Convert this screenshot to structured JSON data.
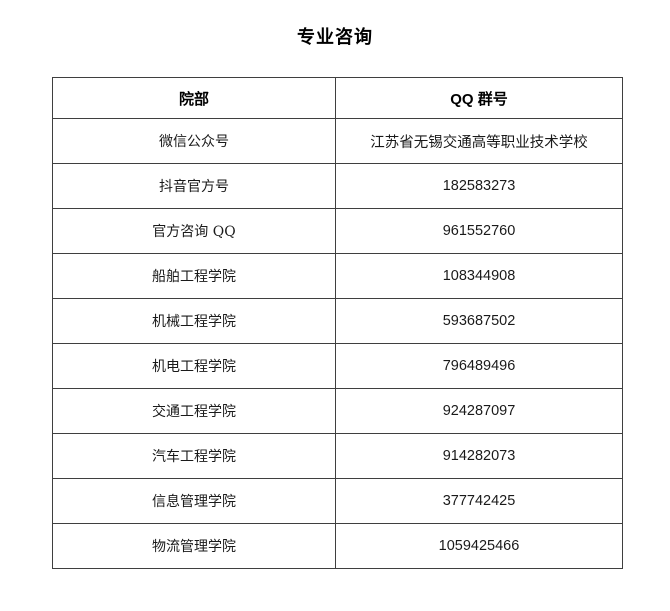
{
  "page": {
    "title": "专业咨询"
  },
  "table": {
    "headers": [
      "院部",
      "QQ 群号"
    ],
    "rows": [
      {
        "dept": "微信公众号",
        "qq": "江苏省无锡交通高等职业技术学校"
      },
      {
        "dept": "抖音官方号",
        "qq": "182583273"
      },
      {
        "dept": "官方咨询 QQ",
        "qq": "961552760"
      },
      {
        "dept": "船舶工程学院",
        "qq": "108344908"
      },
      {
        "dept": "机械工程学院",
        "qq": "593687502"
      },
      {
        "dept": "机电工程学院",
        "qq": "796489496"
      },
      {
        "dept": "交通工程学院",
        "qq": "924287097"
      },
      {
        "dept": "汽车工程学院",
        "qq": "914282073"
      },
      {
        "dept": "信息管理学院",
        "qq": "377742425"
      },
      {
        "dept": "物流管理学院",
        "qq": "1059425466"
      }
    ],
    "colors": {
      "border": "#3f3f3f",
      "text": "#1a1a1a",
      "background": "#ffffff"
    }
  }
}
